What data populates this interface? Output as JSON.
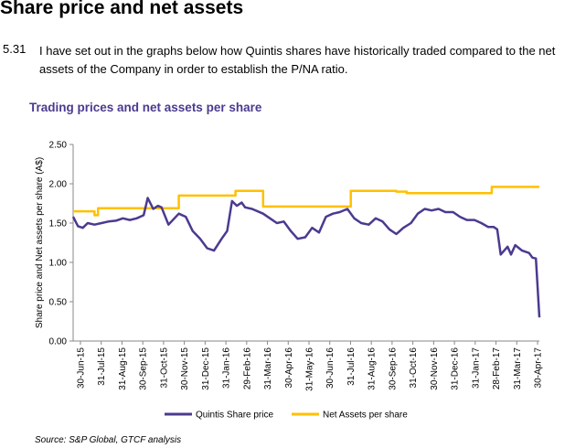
{
  "heading": "Share price and net assets",
  "paragraph": {
    "number": "5.31",
    "text": "I have set out in the graphs below how Quintis shares have historically traded compared to the net assets of the Company in order to establish the P/NA ratio."
  },
  "source": "Source: S&P Global, GTCF analysis",
  "chart_data": {
    "type": "line",
    "title": "Trading prices and net assets per share",
    "ylabel": "Share price and Net assets per share (A$)",
    "xlabel": "",
    "ylim": [
      0,
      2.5
    ],
    "yticks": [
      "0.00",
      "0.50",
      "1.00",
      "1.50",
      "2.00",
      "2.50"
    ],
    "x_tick_labels": [
      "30-Jun-15",
      "31-Jul-15",
      "31-Aug-15",
      "30-Sep-15",
      "31-Oct-15",
      "30-Nov-15",
      "31-Dec-15",
      "31-Jan-16",
      "29-Feb-16",
      "31-Mar-16",
      "30-Apr-16",
      "31-May-16",
      "30-Jun-16",
      "31-Jul-16",
      "31-Aug-16",
      "30-Sep-16",
      "31-Oct-16",
      "30-Nov-16",
      "31-Dec-16",
      "31-Jan-17",
      "28-Feb-17",
      "31-Mar-17",
      "30-Apr-17"
    ],
    "legend_position": "bottom",
    "grid": false,
    "colors": {
      "share_price": "#4b3a8f",
      "net_assets": "#ffc000"
    },
    "series": [
      {
        "name": "Quintis Share price",
        "x": [
          "2015-06-30",
          "2015-07-07",
          "2015-07-14",
          "2015-07-21",
          "2015-07-31",
          "2015-08-10",
          "2015-08-20",
          "2015-08-31",
          "2015-09-10",
          "2015-09-20",
          "2015-09-30",
          "2015-10-10",
          "2015-10-16",
          "2015-10-24",
          "2015-10-31",
          "2015-11-05",
          "2015-11-15",
          "2015-11-30",
          "2015-12-10",
          "2015-12-20",
          "2015-12-31",
          "2016-01-10",
          "2016-01-20",
          "2016-01-31",
          "2016-02-08",
          "2016-02-15",
          "2016-02-22",
          "2016-02-29",
          "2016-03-05",
          "2016-03-15",
          "2016-03-31",
          "2016-04-10",
          "2016-04-20",
          "2016-04-30",
          "2016-05-10",
          "2016-05-20",
          "2016-05-31",
          "2016-06-10",
          "2016-06-20",
          "2016-06-30",
          "2016-07-10",
          "2016-07-20",
          "2016-07-31",
          "2016-08-10",
          "2016-08-20",
          "2016-08-31",
          "2016-09-10",
          "2016-09-20",
          "2016-09-30",
          "2016-10-10",
          "2016-10-20",
          "2016-10-31",
          "2016-11-10",
          "2016-11-20",
          "2016-11-30",
          "2016-12-10",
          "2016-12-20",
          "2016-12-31",
          "2017-01-10",
          "2017-01-20",
          "2017-01-31",
          "2017-02-10",
          "2017-02-20",
          "2017-02-28",
          "2017-03-05",
          "2017-03-10",
          "2017-03-15",
          "2017-03-20",
          "2017-03-25",
          "2017-03-31",
          "2017-04-10",
          "2017-04-20",
          "2017-04-25",
          "2017-04-30",
          "2017-05-03",
          "2017-05-05"
        ],
        "values": [
          1.58,
          1.46,
          1.44,
          1.5,
          1.48,
          1.5,
          1.52,
          1.53,
          1.56,
          1.54,
          1.56,
          1.6,
          1.82,
          1.68,
          1.72,
          1.7,
          1.48,
          1.62,
          1.58,
          1.4,
          1.3,
          1.18,
          1.15,
          1.3,
          1.4,
          1.78,
          1.72,
          1.76,
          1.7,
          1.68,
          1.62,
          1.56,
          1.5,
          1.52,
          1.4,
          1.3,
          1.32,
          1.44,
          1.38,
          1.58,
          1.62,
          1.64,
          1.68,
          1.56,
          1.5,
          1.48,
          1.56,
          1.52,
          1.42,
          1.36,
          1.44,
          1.5,
          1.62,
          1.68,
          1.66,
          1.68,
          1.64,
          1.64,
          1.58,
          1.54,
          1.54,
          1.5,
          1.45,
          1.45,
          1.42,
          1.1,
          1.15,
          1.2,
          1.1,
          1.22,
          1.15,
          1.12,
          1.06,
          1.05,
          0.6,
          0.3
        ]
      },
      {
        "name": "Net Assets per share",
        "x": [
          "2015-06-30",
          "2015-07-31",
          "2015-07-31",
          "2015-08-05",
          "2015-08-05",
          "2015-11-30",
          "2015-11-30",
          "2016-02-20",
          "2016-02-20",
          "2016-03-31",
          "2016-03-31",
          "2016-08-05",
          "2016-08-05",
          "2016-10-10",
          "2016-10-10",
          "2016-10-25",
          "2016-10-25",
          "2017-02-25",
          "2017-02-25",
          "2017-05-05"
        ],
        "values": [
          1.65,
          1.65,
          1.6,
          1.6,
          1.69,
          1.69,
          1.85,
          1.85,
          1.91,
          1.91,
          1.71,
          1.71,
          1.91,
          1.91,
          1.9,
          1.9,
          1.88,
          1.88,
          1.96,
          1.96
        ]
      }
    ]
  }
}
